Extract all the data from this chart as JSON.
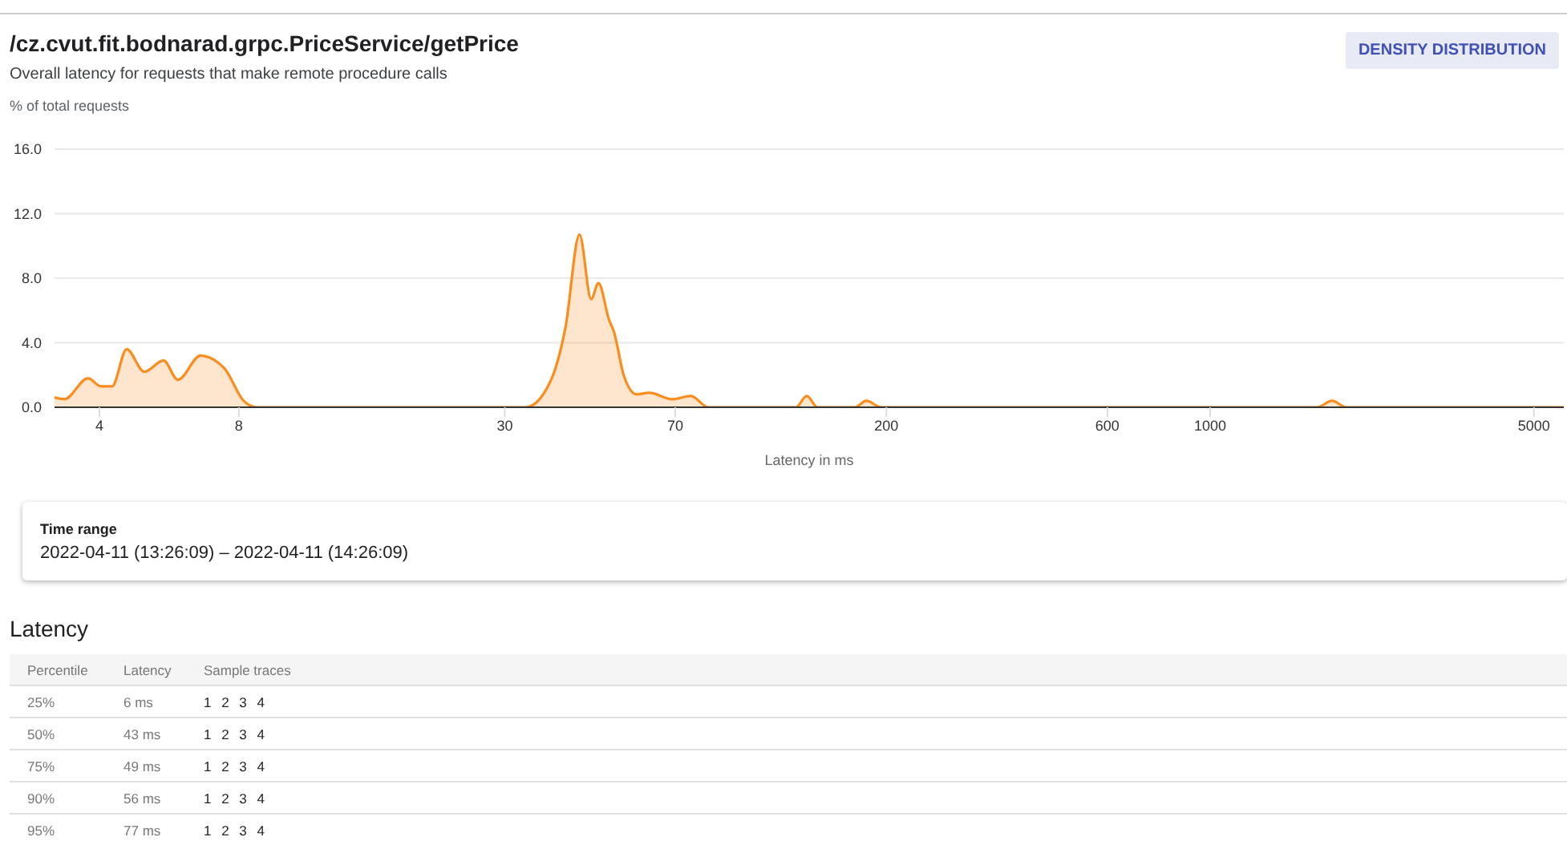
{
  "chart_data": [
    {
      "type": "area",
      "title": "/cz.cvut.fit.bodnarad.grpc.PriceService/getPrice",
      "subtitle": "Overall latency for requests that make remote procedure calls",
      "ylabel": "% of total requests",
      "xlabel": "Latency in ms",
      "annotations": [
        "DENSITY DISTRIBUTION"
      ],
      "log": "x",
      "grid": "y",
      "marker": "none",
      "x": [
        3.2,
        3.36,
        3.78,
        4.03,
        4.26,
        4.58,
        5.0,
        5.5,
        5.91,
        6.61,
        7.45,
        8.19,
        8.73,
        33.3,
        37.5,
        40.6,
        43.5,
        46.1,
        47.8,
        50.4,
        51.6,
        54.3,
        57.8,
        61.5,
        69,
        75.7,
        82.4,
        127.6,
        134.6,
        142,
        171,
        181,
        195,
        1702,
        1833,
        1968,
        5800
      ],
      "series": [
        {
          "color": "#fb8c1e",
          "values": [
            0.6,
            0.5,
            1.8,
            1.3,
            1.3,
            3.6,
            2.2,
            2.9,
            1.7,
            3.2,
            2.4,
            0.4,
            0,
            0,
            1.5,
            5.0,
            10.7,
            6.7,
            7.7,
            5.4,
            4.7,
            1.9,
            0.8,
            0.9,
            0.5,
            0.7,
            0,
            0,
            0.7,
            0,
            0,
            0.4,
            0,
            0,
            0.4,
            0,
            0
          ]
        }
      ],
      "xlim": [
        3.2,
        5800
      ],
      "xticks": [
        4,
        8,
        30,
        70,
        200,
        600,
        1000,
        5000
      ],
      "ylim": [
        0,
        16
      ],
      "yticks": [
        {
          "value": 0,
          "label": "0.0"
        },
        {
          "value": 4,
          "label": "4.0"
        },
        {
          "value": 8,
          "label": "8.0"
        },
        {
          "value": 12,
          "label": "12.0"
        },
        {
          "value": 16,
          "label": "16.0"
        }
      ]
    },
    {
      "type": "other",
      "title": "Time range",
      "subtitle": "2022-04-11 (13:26:09) – 2022-04-11 (14:26:09)"
    },
    {
      "type": "other",
      "title": "Latency",
      "xlabel": "Percentile",
      "ylabel": "Latency",
      "categories": [
        "25%",
        "50%",
        "75%",
        "90%",
        "95%"
      ],
      "value_labels": [
        "6 ms",
        "43 ms",
        "49 ms",
        "56 ms",
        "77 ms"
      ],
      "annotations": [
        "Sample traces",
        "1 2 3 4",
        "1 2 3 4",
        "1 2 3 4",
        "1 2 3 4",
        "1 2 3 4"
      ]
    }
  ]
}
